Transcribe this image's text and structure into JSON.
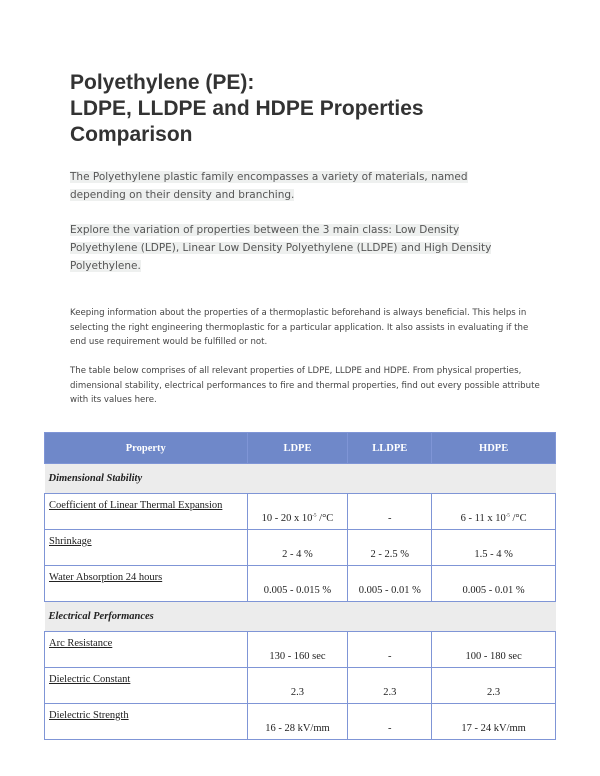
{
  "title": [
    "Polyethylene (PE):",
    "LDPE, LLDPE and HDPE Properties",
    "Comparison"
  ],
  "intro": {
    "p1": [
      "The Polyethylene plastic family encompasses a variety of materials, named",
      "depending on their density and branching."
    ],
    "p2": [
      "Explore the variation of properties between the 3 main class: Low Density",
      "Polyethylene (LDPE), Linear Low Density Polyethylene (LLDPE) and High Density",
      "Polyethylene."
    ]
  },
  "body": {
    "p3": "Keeping information about the properties of a thermoplastic beforehand is always beneficial. This helps in selecting the right engineering thermoplastic for a particular application. It also assists in evaluating if the end use requirement would be fulfilled or not.",
    "p4": "The table below comprises of all relevant properties of LDPE, LLDPE and HDPE. From physical properties, dimensional stability, electrical performances to fire and thermal properties, find out every possible attribute with its values here."
  },
  "table": {
    "headers": [
      "Property",
      "LDPE",
      "LLDPE",
      "HDPE"
    ],
    "sections": [
      {
        "name": "Dimensional Stability",
        "rows": [
          {
            "property": "Coefficient of Linear Thermal Expansion",
            "ldpe": "10 - 20 x 10",
            "ldpe_sup": "-5",
            "ldpe_unit": " /°C",
            "lldpe": "-",
            "hdpe": "6 - 11 x 10",
            "hdpe_sup": "-5",
            "hdpe_unit": " /°C"
          },
          {
            "property": "Shrinkage",
            "ldpe": "2 - 4 %",
            "lldpe": "2 - 2.5 %",
            "hdpe": "1.5 - 4 %"
          },
          {
            "property": "Water Absorption 24 hours",
            "ldpe": "0.005 - 0.015 %",
            "lldpe": "0.005 - 0.01 %",
            "hdpe": "0.005 - 0.01 %"
          }
        ]
      },
      {
        "name": "Electrical Performances",
        "rows": [
          {
            "property": "Arc Resistance",
            "ldpe": "130 - 160 sec",
            "lldpe": "-",
            "hdpe": "100 - 180 sec"
          },
          {
            "property": "Dielectric Constant",
            "ldpe": "2.3",
            "lldpe": "2.3",
            "hdpe": "2.3"
          },
          {
            "property": "Dielectric Strength",
            "ldpe": "16 - 28 kV/mm",
            "lldpe": "-",
            "hdpe": "17 - 24 kV/mm"
          }
        ]
      }
    ]
  }
}
